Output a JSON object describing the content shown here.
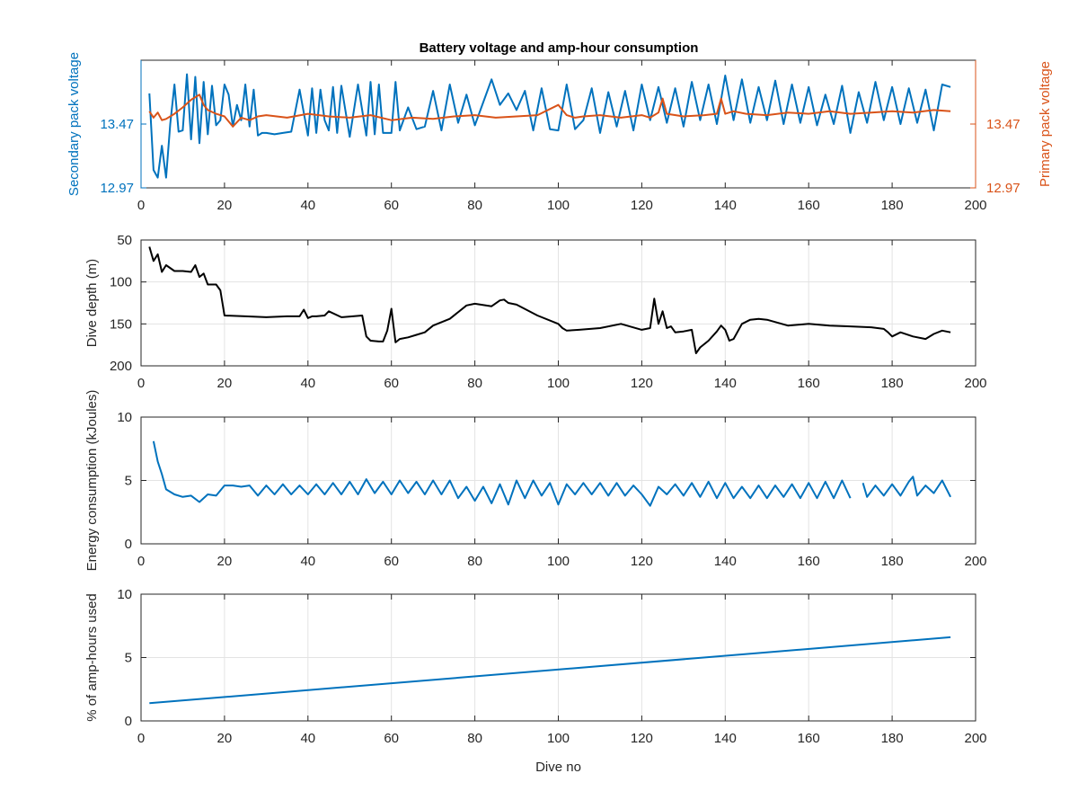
{
  "figure": {
    "title": "Battery voltage and amp-hour consumption"
  },
  "colors": {
    "blue": "#0072bd",
    "orange": "#d95319",
    "black": "#000000",
    "grid": "#e3e3e3",
    "axis": "#262626"
  },
  "chart_data": [
    {
      "type": "line",
      "title": "Battery voltage and amp-hour consumption",
      "xlabel": "",
      "ylabel_left": "Secondary pack voltage",
      "ylabel_right": "Primary pack voltage",
      "xlim": [
        0,
        200
      ],
      "ylim": [
        12.97,
        13.97
      ],
      "xticks": [
        "0",
        "20",
        "40",
        "60",
        "80",
        "100",
        "120",
        "140",
        "160",
        "180",
        "200"
      ],
      "yticks_left": [
        "12.97",
        "13.47"
      ],
      "yticks_right": [
        "12.97",
        "13.47"
      ],
      "grid": false,
      "series": [
        {
          "axis": "left",
          "color": "blue",
          "x": [
            2,
            3,
            4,
            5,
            6,
            7,
            8,
            9,
            10,
            11,
            12,
            13,
            14,
            15,
            16,
            17,
            18,
            19,
            20,
            21,
            22,
            23,
            24,
            25,
            26,
            27,
            28,
            29,
            30,
            32,
            34,
            36,
            38,
            40,
            41,
            42,
            43,
            44,
            45,
            46,
            47,
            48,
            50,
            52,
            54,
            55,
            56,
            57,
            58,
            60,
            61,
            62,
            64,
            66,
            68,
            70,
            72,
            74,
            76,
            78,
            80,
            82,
            84,
            86,
            88,
            90,
            92,
            94,
            96,
            98,
            100,
            102,
            104,
            106,
            108,
            110,
            112,
            114,
            116,
            118,
            120,
            122,
            124,
            126,
            128,
            130,
            132,
            134,
            136,
            138,
            140,
            142,
            144,
            146,
            148,
            150,
            152,
            154,
            156,
            158,
            160,
            162,
            164,
            166,
            168,
            170,
            172,
            174,
            176,
            178,
            180,
            182,
            184,
            186,
            188,
            190,
            192,
            194
          ],
          "values": [
            13.71,
            13.11,
            13.05,
            13.3,
            13.05,
            13.47,
            13.78,
            13.41,
            13.42,
            13.86,
            13.35,
            13.84,
            13.32,
            13.8,
            13.39,
            13.77,
            13.46,
            13.5,
            13.78,
            13.7,
            13.45,
            13.62,
            13.5,
            13.78,
            13.45,
            13.74,
            13.38,
            13.4,
            13.4,
            13.39,
            13.4,
            13.41,
            13.74,
            13.38,
            13.75,
            13.4,
            13.74,
            13.5,
            13.42,
            13.76,
            13.4,
            13.77,
            13.37,
            13.78,
            13.38,
            13.8,
            13.39,
            13.78,
            13.4,
            13.4,
            13.8,
            13.42,
            13.6,
            13.43,
            13.45,
            13.73,
            13.42,
            13.78,
            13.48,
            13.7,
            13.46,
            13.64,
            13.82,
            13.62,
            13.71,
            13.58,
            13.73,
            13.42,
            13.75,
            13.43,
            13.42,
            13.78,
            13.43,
            13.5,
            13.75,
            13.4,
            13.72,
            13.45,
            13.73,
            13.42,
            13.78,
            13.5,
            13.76,
            13.48,
            13.75,
            13.45,
            13.8,
            13.5,
            13.78,
            13.47,
            13.85,
            13.5,
            13.82,
            13.48,
            13.76,
            13.5,
            13.81,
            13.47,
            13.78,
            13.48,
            13.76,
            13.46,
            13.7,
            13.47,
            13.77,
            13.4,
            13.72,
            13.48,
            13.8,
            13.5,
            13.76,
            13.47,
            13.75,
            13.48,
            13.74,
            13.42,
            13.78,
            13.76
          ]
        },
        {
          "axis": "right",
          "color": "orange",
          "x": [
            2,
            3,
            4,
            5,
            6,
            8,
            10,
            12,
            14,
            15,
            16,
            18,
            20,
            22,
            24,
            26,
            28,
            30,
            35,
            40,
            45,
            50,
            55,
            60,
            65,
            70,
            75,
            80,
            85,
            90,
            95,
            100,
            102,
            104,
            106,
            110,
            115,
            120,
            122,
            124,
            125,
            126,
            130,
            135,
            138,
            139,
            140,
            142,
            145,
            150,
            155,
            160,
            165,
            170,
            175,
            180,
            185,
            190,
            194
          ],
          "values": [
            13.57,
            13.52,
            13.56,
            13.5,
            13.51,
            13.55,
            13.6,
            13.66,
            13.7,
            13.62,
            13.58,
            13.55,
            13.53,
            13.45,
            13.52,
            13.5,
            13.53,
            13.54,
            13.52,
            13.55,
            13.53,
            13.52,
            13.54,
            13.5,
            13.52,
            13.51,
            13.53,
            13.54,
            13.52,
            13.53,
            13.54,
            13.62,
            13.54,
            13.52,
            13.53,
            13.54,
            13.52,
            13.54,
            13.52,
            13.56,
            13.67,
            13.55,
            13.53,
            13.54,
            13.55,
            13.67,
            13.55,
            13.57,
            13.55,
            13.54,
            13.56,
            13.55,
            13.57,
            13.55,
            13.56,
            13.57,
            13.56,
            13.58,
            13.57
          ]
        }
      ]
    },
    {
      "type": "line",
      "xlabel": "",
      "ylabel": "Dive depth (m)",
      "xlim": [
        0,
        200
      ],
      "ylim": [
        50,
        200
      ],
      "y_reversed": true,
      "xticks": [
        "0",
        "20",
        "40",
        "60",
        "80",
        "100",
        "120",
        "140",
        "160",
        "180",
        "200"
      ],
      "yticks": [
        "50",
        "100",
        "150",
        "200"
      ],
      "grid": true,
      "series": [
        {
          "color": "black",
          "x": [
            2,
            3,
            4,
            5,
            6,
            8,
            10,
            12,
            13,
            14,
            15,
            16,
            17,
            18,
            19,
            20,
            25,
            30,
            35,
            38,
            39,
            40,
            41,
            42,
            44,
            45,
            48,
            53,
            54,
            55,
            57,
            58,
            59,
            60,
            61,
            62,
            64,
            66,
            68,
            70,
            74,
            78,
            80,
            84,
            86,
            87,
            88,
            90,
            95,
            100,
            101,
            102,
            105,
            110,
            115,
            120,
            122,
            123,
            124,
            125,
            126,
            127,
            128,
            130,
            132,
            133,
            134,
            136,
            138,
            139,
            140,
            141,
            142,
            144,
            146,
            148,
            150,
            155,
            160,
            165,
            170,
            175,
            178,
            179,
            180,
            182,
            185,
            188,
            190,
            192,
            194
          ],
          "values": [
            58,
            75,
            67,
            88,
            80,
            87,
            87,
            88,
            80,
            94,
            90,
            103,
            103,
            103,
            110,
            140,
            141,
            142,
            141,
            141,
            133,
            143,
            141,
            141,
            140,
            135,
            142,
            140,
            165,
            170,
            171,
            171,
            158,
            132,
            172,
            168,
            166,
            163,
            160,
            152,
            144,
            128,
            126,
            129,
            122,
            121,
            125,
            127,
            140,
            150,
            155,
            158,
            157,
            155,
            150,
            157,
            155,
            120,
            150,
            135,
            155,
            153,
            160,
            159,
            157,
            185,
            178,
            170,
            159,
            152,
            157,
            170,
            168,
            150,
            145,
            144,
            145,
            152,
            150,
            152,
            153,
            154,
            156,
            160,
            165,
            160,
            165,
            168,
            162,
            158,
            160
          ]
        }
      ]
    },
    {
      "type": "line",
      "xlabel": "",
      "ylabel": "Energy consumption (kJoules)",
      "xlim": [
        0,
        200
      ],
      "ylim": [
        0,
        10
      ],
      "xticks": [
        "0",
        "20",
        "40",
        "60",
        "80",
        "100",
        "120",
        "140",
        "160",
        "180",
        "200"
      ],
      "yticks": [
        "0",
        "5",
        "10"
      ],
      "grid": true,
      "series": [
        {
          "color": "blue",
          "x": [
            3,
            4,
            5,
            6,
            8,
            10,
            12,
            14,
            16,
            18,
            20,
            22,
            24,
            26,
            28,
            30,
            32,
            34,
            36,
            38,
            40,
            42,
            44,
            46,
            48,
            50,
            52,
            54,
            56,
            58,
            60,
            62,
            64,
            66,
            68,
            70,
            72,
            74,
            76,
            78,
            80,
            82,
            84,
            86,
            88,
            90,
            92,
            94,
            96,
            98,
            100,
            102,
            104,
            106,
            108,
            110,
            112,
            114,
            116,
            118,
            120,
            122,
            124,
            126,
            128,
            130,
            132,
            134,
            136,
            138,
            140,
            142,
            144,
            146,
            148,
            150,
            152,
            154,
            156,
            158,
            160,
            162,
            164,
            166,
            168,
            170
          ],
          "values": [
            8.1,
            6.5,
            5.5,
            4.3,
            3.9,
            3.7,
            3.8,
            3.3,
            3.9,
            3.8,
            4.6,
            4.6,
            4.5,
            4.6,
            3.8,
            4.6,
            3.9,
            4.7,
            3.9,
            4.6,
            3.9,
            4.7,
            3.9,
            4.8,
            3.9,
            4.9,
            3.9,
            5.1,
            4.0,
            4.9,
            3.9,
            5.0,
            4.0,
            4.9,
            3.9,
            5.0,
            3.9,
            5.0,
            3.6,
            4.5,
            3.4,
            4.5,
            3.2,
            4.7,
            3.1,
            5.0,
            3.6,
            5.0,
            3.8,
            4.8,
            3.1,
            4.7,
            3.9,
            4.8,
            3.9,
            4.8,
            3.8,
            4.8,
            3.8,
            4.6,
            3.9,
            3.0,
            4.5,
            3.9,
            4.7,
            3.8,
            4.8,
            3.7,
            4.9,
            3.6,
            4.8,
            3.6,
            4.5,
            3.6,
            4.6,
            3.6,
            4.6,
            3.7,
            4.7,
            3.6,
            4.8,
            3.6,
            4.9,
            3.6,
            5.0,
            3.6
          ]
        },
        {
          "color": "blue",
          "x": [
            173,
            174,
            176,
            178,
            180,
            182,
            184,
            185,
            186,
            188,
            190,
            192,
            194
          ],
          "values": [
            4.8,
            3.7,
            4.6,
            3.8,
            4.7,
            3.8,
            4.9,
            5.3,
            3.8,
            4.6,
            4.0,
            5.0,
            3.7
          ]
        }
      ]
    },
    {
      "type": "line",
      "xlabel": "Dive no",
      "ylabel": "% of amp-hours used",
      "xlim": [
        0,
        200
      ],
      "ylim": [
        0,
        10
      ],
      "xticks": [
        "0",
        "20",
        "40",
        "60",
        "80",
        "100",
        "120",
        "140",
        "160",
        "180",
        "200"
      ],
      "yticks": [
        "0",
        "5",
        "10"
      ],
      "grid": true,
      "series": [
        {
          "color": "blue",
          "x": [
            2,
            194
          ],
          "values": [
            1.4,
            6.6
          ]
        }
      ]
    }
  ]
}
